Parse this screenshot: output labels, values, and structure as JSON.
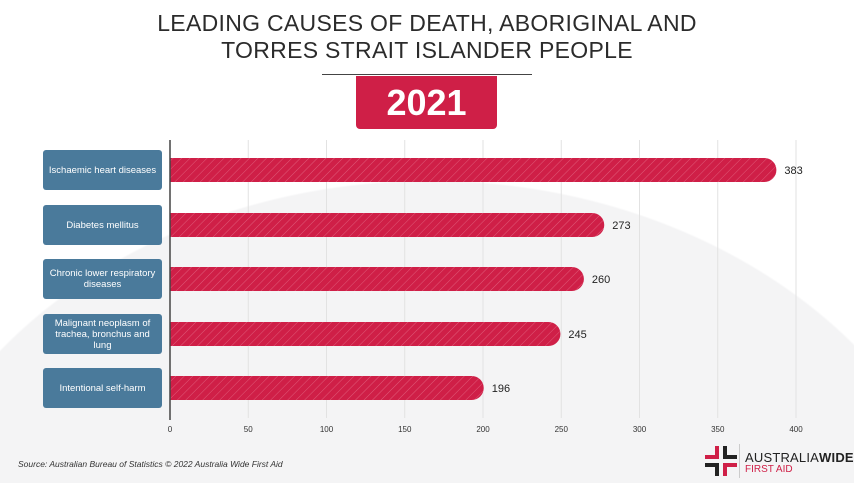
{
  "title_line1": "LEADING CAUSES OF DEATH, ABORIGINAL AND",
  "title_line2": "TORRES STRAIT ISLANDER PEOPLE",
  "year": "2021",
  "source": "Source: Australian Bureau of Statistics © 2022 Australia Wide First Aid",
  "logo": {
    "word1": "AUSTRALIA",
    "word2": "WIDE",
    "line2": "FIRST AID"
  },
  "colors": {
    "bar": "#cf1f47",
    "category_box": "#4a7a9b"
  },
  "chart_data": {
    "type": "bar",
    "orientation": "horizontal",
    "title": "LEADING CAUSES OF DEATH, ABORIGINAL AND TORRES STRAIT ISLANDER PEOPLE",
    "subtitle": "2021",
    "categories": [
      "Ischaemic heart diseases",
      "Diabetes mellitus",
      "Chronic lower respiratory diseases",
      "Malignant neoplasm of trachea, bronchus and lung",
      "Intentional self-harm"
    ],
    "values": [
      383,
      273,
      260,
      245,
      196
    ],
    "xlim": [
      0,
      400
    ],
    "xticks": [
      0,
      50,
      100,
      150,
      200,
      250,
      300,
      350,
      400
    ],
    "grid": true,
    "data_labels": true
  }
}
